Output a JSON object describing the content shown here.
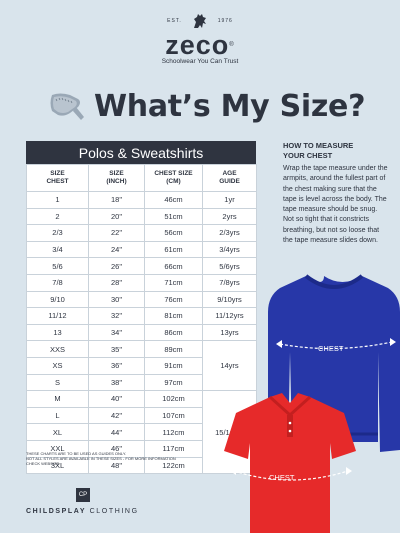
{
  "brand": {
    "est_left": "EST.",
    "est_right": "1976",
    "logo": "zeco",
    "logo_mark": "®",
    "tagline": "Schoolwear You Can Trust"
  },
  "title": "What’s My Size?",
  "table": {
    "heading": "Polos & Sweatshirts",
    "columns": [
      [
        "SIZE",
        "CHEST"
      ],
      [
        "SIZE",
        "(INCH)"
      ],
      [
        "CHEST SIZE",
        "(CM)"
      ],
      [
        "AGE",
        "GUIDE"
      ]
    ],
    "rows": [
      [
        "1",
        "18\"",
        "46cm",
        "1yr"
      ],
      [
        "2",
        "20\"",
        "51cm",
        "2yrs"
      ],
      [
        "2/3",
        "22\"",
        "56cm",
        "2/3yrs"
      ],
      [
        "3/4",
        "24\"",
        "61cm",
        "3/4yrs"
      ],
      [
        "5/6",
        "26\"",
        "66cm",
        "5/6yrs"
      ],
      [
        "7/8",
        "28\"",
        "71cm",
        "7/8yrs"
      ],
      [
        "9/10",
        "30\"",
        "76cm",
        "9/10yrs"
      ],
      [
        "11/12",
        "32\"",
        "81cm",
        "11/12yrs"
      ],
      [
        "13",
        "34\"",
        "86cm",
        "13yrs"
      ],
      [
        "XXS",
        "35\"",
        "89cm",
        ""
      ],
      [
        "XS",
        "36\"",
        "91cm",
        ""
      ],
      [
        "S",
        "38\"",
        "97cm",
        ""
      ],
      [
        "M",
        "40\"",
        "102cm",
        ""
      ],
      [
        "L",
        "42\"",
        "107cm",
        ""
      ],
      [
        "XL",
        "44\"",
        "112cm",
        ""
      ],
      [
        "XXL",
        "46\"",
        "117cm",
        ""
      ],
      [
        "3XL",
        "48\"",
        "122cm",
        ""
      ]
    ],
    "age_14": "14yrs",
    "age_15_16": "15/16yrs"
  },
  "footnote": {
    "line1": "THESE CHARTS ARE TO BE USED AS GUIDES ONLY.",
    "line2": "NOT ALL STYLES ARE AVAILABLE IN THESE SIZES - FOR MORE INFORMATION",
    "line3": "CHECK WEBSITE."
  },
  "childsplay": {
    "mark": "CP",
    "name_bold": "CHILDSPLAY",
    "name_rest": " CLOTHING"
  },
  "measure": {
    "title_line1": "HOW TO MEASURE",
    "title_line2": "YOUR CHEST",
    "body": "Wrap the tape measure under the armpits, around the fullest part of the chest making sure that the tape is level across the body. The tape measure should be snug. Not so tight that it constricts breathing, but not so loose that the tape measure slides down."
  },
  "garments": {
    "sweatshirt_label": "CHEST",
    "polo_label": "CHEST"
  },
  "colors": {
    "background": "#d9e4ec",
    "dark": "#2f3440",
    "sweatshirt": "#2737a8",
    "polo": "#e62a2a"
  }
}
